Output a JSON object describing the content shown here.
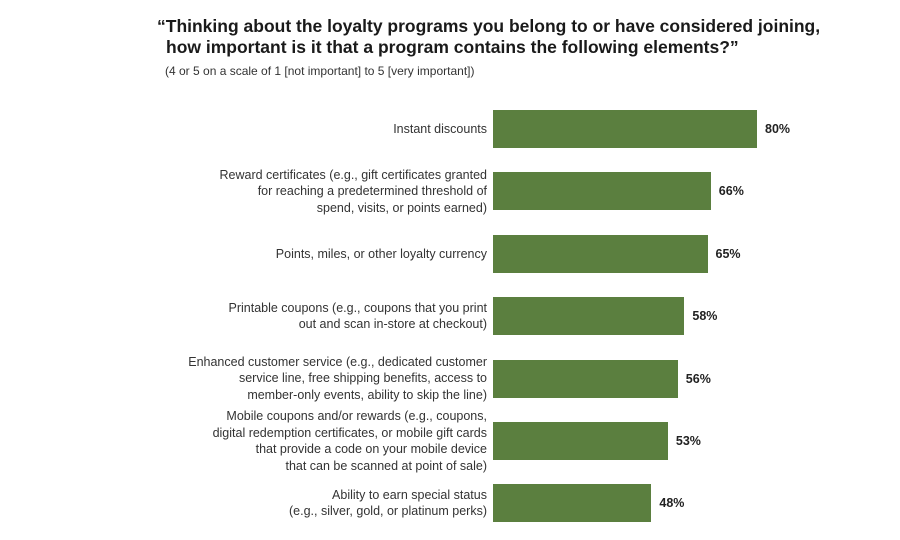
{
  "chart_data": {
    "type": "bar",
    "orientation": "horizontal",
    "title_lines": [
      "“Thinking about the loyalty programs you belong to or have considered joining,",
      "how important is it that a program contains the following elements?”"
    ],
    "subtitle": "(4 or 5 on a scale of 1 [not important] to 5 [very important])",
    "categories": [
      [
        "Instant discounts"
      ],
      [
        "Reward certificates (e.g., gift certificates granted",
        "for reaching a predetermined threshold of",
        "spend, visits, or points earned)"
      ],
      [
        "Points, miles, or other loyalty currency"
      ],
      [
        "Printable coupons (e.g., coupons that you print",
        "out and scan in-store at checkout)"
      ],
      [
        "Enhanced customer service (e.g., dedicated customer",
        "service line, free shipping benefits, access to",
        "member-only events, ability to skip the line)"
      ],
      [
        "Mobile coupons and/or rewards (e.g., coupons,",
        "digital redemption certificates, or mobile gift cards",
        "that provide a code on your mobile device",
        "that can be scanned at point of sale)"
      ],
      [
        "Ability to earn special status",
        "(e.g., silver, gold, or platinum perks)"
      ]
    ],
    "values": [
      80,
      66,
      65,
      58,
      56,
      53,
      48
    ],
    "value_labels": [
      "80%",
      "66%",
      "65%",
      "58%",
      "56%",
      "53%",
      "48%"
    ],
    "unit": "%",
    "xlim": [
      0,
      100
    ],
    "grid": false,
    "legend": "none",
    "bar_color": "#5b7f3f"
  }
}
